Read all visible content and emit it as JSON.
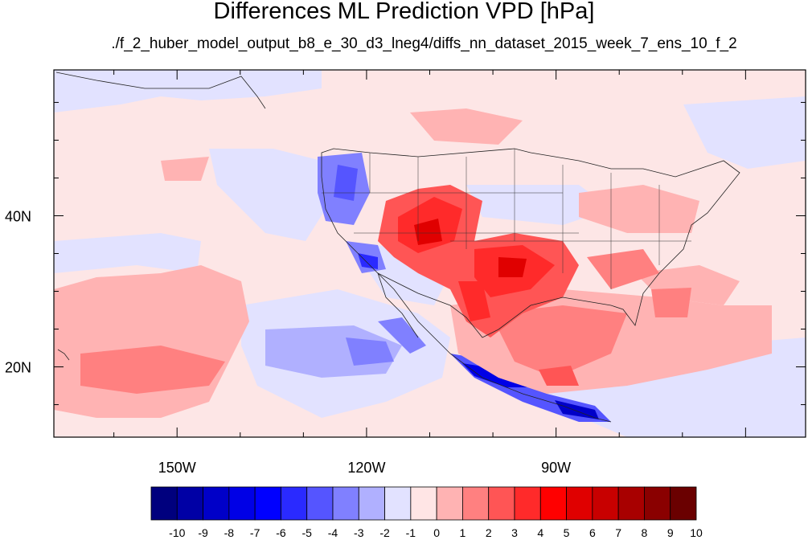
{
  "title": "Differences ML Prediction VPD [hPa]",
  "subtitle": "./f_2_huber_model_output_b8_e_30_d3_lneg4/diffs_nn_dataset_2015_week_7_ens_10_f_2",
  "map": {
    "lon_range": [
      -169.5,
      -50.5
    ],
    "lat_range": [
      10.7,
      59.3
    ],
    "lon_ticks": [
      {
        "value": -150,
        "label": "150W"
      },
      {
        "value": -120,
        "label": "120W"
      },
      {
        "value": -90,
        "label": "90W"
      }
    ],
    "lat_ticks": [
      {
        "value": 40,
        "label": "40N"
      },
      {
        "value": 20,
        "label": "20N"
      }
    ],
    "background_value_range": [
      -1,
      1
    ]
  },
  "colorbar": {
    "labels": [
      "-10",
      "-9",
      "-8",
      "-7",
      "-6",
      "-5",
      "-4",
      "-3",
      "-2",
      "-1",
      "0",
      "1",
      "2",
      "3",
      "4",
      "5",
      "6",
      "7",
      "8",
      "9",
      "10"
    ],
    "colors": [
      "#00007e",
      "#0000a5",
      "#0000c8",
      "#0000e6",
      "#0000ff",
      "#2a2aff",
      "#5555ff",
      "#8080ff",
      "#b0b0ff",
      "#e2e2ff",
      "#ffe5e5",
      "#ffb3b3",
      "#ff8080",
      "#ff5555",
      "#ff2a2a",
      "#ff0000",
      "#e00000",
      "#c80000",
      "#a80000",
      "#8a0000",
      "#6a0000"
    ]
  }
}
